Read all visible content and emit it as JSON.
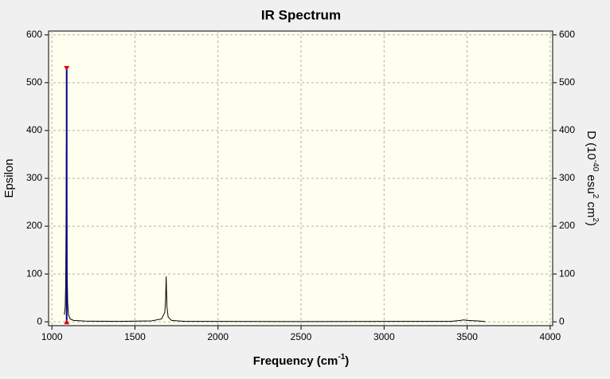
{
  "chart_data": {
    "type": "line",
    "title": "IR Spectrum",
    "x_label": {
      "text": "Frequency (cm",
      "sup": "-1",
      "tail": ")"
    },
    "y_label": "Epsilon",
    "y2_label": {
      "parts": [
        "D (10",
        "-40",
        " esu",
        "2",
        " cm",
        "2",
        ")"
      ]
    },
    "xlim": [
      980,
      4015
    ],
    "xticks": [
      1000,
      1500,
      2000,
      2500,
      3000,
      3500,
      4000
    ],
    "ylim": [
      -8,
      608
    ],
    "yticks": [
      0,
      100,
      200,
      300,
      400,
      500,
      600
    ],
    "y2lim": [
      -8,
      608
    ],
    "y2ticks": [
      0,
      100,
      200,
      300,
      400,
      500,
      600
    ],
    "grid": true,
    "series": [
      {
        "color": "#000000",
        "x": [
          1075,
          1080,
          1083,
          1085,
          1087,
          1088,
          1089,
          1090,
          1092,
          1095,
          1100,
          1110,
          1130,
          1200,
          1400,
          1600,
          1660,
          1680,
          1685,
          1688,
          1690,
          1693,
          1700,
          1720,
          1800,
          2500,
          3400,
          3460,
          3480,
          3500,
          3560,
          3600,
          3610
        ],
        "values": [
          15,
          30,
          80,
          190,
          370,
          300,
          530,
          300,
          100,
          40,
          15,
          6,
          3,
          1.5,
          1,
          2,
          6,
          20,
          50,
          95,
          65,
          30,
          10,
          3,
          1,
          0.5,
          1,
          3,
          4,
          3,
          2,
          1,
          0
        ]
      },
      {
        "type": "stick",
        "color": "#00008b",
        "marker_color": "#e00000",
        "axis": "y2",
        "x": [
          1089
        ],
        "values": [
          530
        ]
      }
    ]
  }
}
